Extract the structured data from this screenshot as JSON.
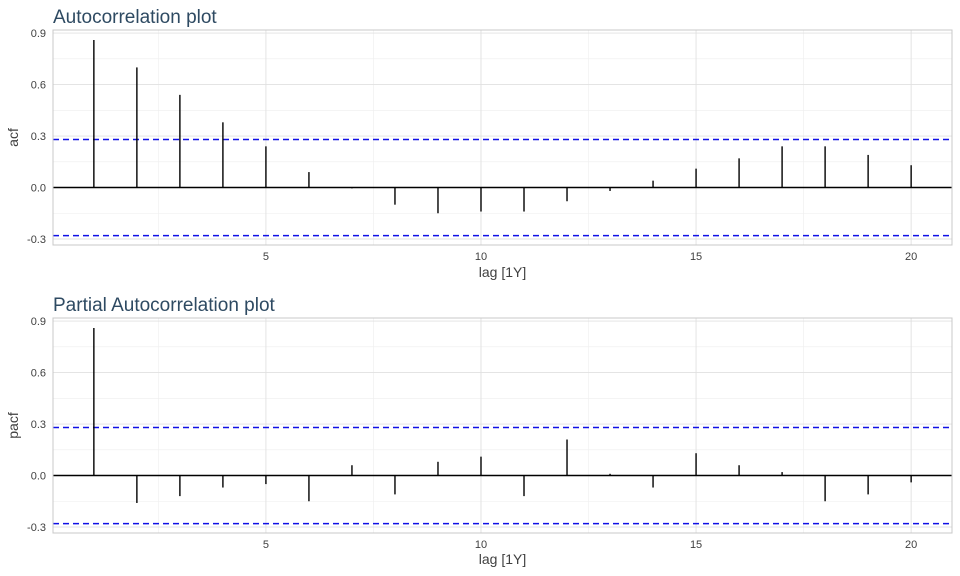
{
  "chart_data": [
    {
      "type": "bar",
      "title": "Autocorrelation plot",
      "xlabel": "lag [1Y]",
      "ylabel": "acf",
      "x": [
        1,
        2,
        3,
        4,
        5,
        6,
        7,
        8,
        9,
        10,
        11,
        12,
        13,
        14,
        15,
        16,
        17,
        18,
        19,
        20
      ],
      "values": [
        0.86,
        0.7,
        0.54,
        0.38,
        0.24,
        0.09,
        -0.005,
        -0.1,
        -0.15,
        -0.14,
        -0.14,
        -0.08,
        -0.02,
        0.04,
        0.11,
        0.17,
        0.24,
        0.24,
        0.19,
        0.13
      ],
      "conf_limit": 0.28,
      "xticks": [
        5,
        10,
        15,
        20
      ],
      "xtick_labels": [
        "5",
        "10",
        "15",
        "20"
      ],
      "yticks": [
        -0.3,
        0.0,
        0.3,
        0.6,
        0.9
      ],
      "ytick_labels": [
        "-0.3",
        "0.0",
        "0.3",
        "0.6",
        "0.9"
      ],
      "xlim": [
        0.05,
        20.95
      ],
      "ylim": [
        -0.335,
        0.918
      ],
      "grid": true
    },
    {
      "type": "bar",
      "title": "Partial Autocorrelation plot",
      "xlabel": "lag [1Y]",
      "ylabel": "pacf",
      "x": [
        1,
        2,
        3,
        4,
        5,
        6,
        7,
        8,
        9,
        10,
        11,
        12,
        13,
        14,
        15,
        16,
        17,
        18,
        19,
        20
      ],
      "values": [
        0.86,
        -0.16,
        -0.12,
        -0.07,
        -0.05,
        -0.15,
        0.06,
        -0.11,
        0.08,
        0.11,
        -0.12,
        0.21,
        0.01,
        -0.07,
        0.13,
        0.06,
        0.02,
        -0.15,
        -0.11,
        -0.04
      ],
      "conf_limit": 0.28,
      "xticks": [
        5,
        10,
        15,
        20
      ],
      "xtick_labels": [
        "5",
        "10",
        "15",
        "20"
      ],
      "yticks": [
        -0.3,
        0.0,
        0.3,
        0.6,
        0.9
      ],
      "ytick_labels": [
        "-0.3",
        "0.0",
        "0.3",
        "0.6",
        "0.9"
      ],
      "xlim": [
        0.05,
        20.95
      ],
      "ylim": [
        -0.335,
        0.918
      ],
      "grid": true
    }
  ],
  "colors": {
    "bar": "#000000",
    "confidence_line": "#1010e6",
    "title": "#2e4a62"
  }
}
